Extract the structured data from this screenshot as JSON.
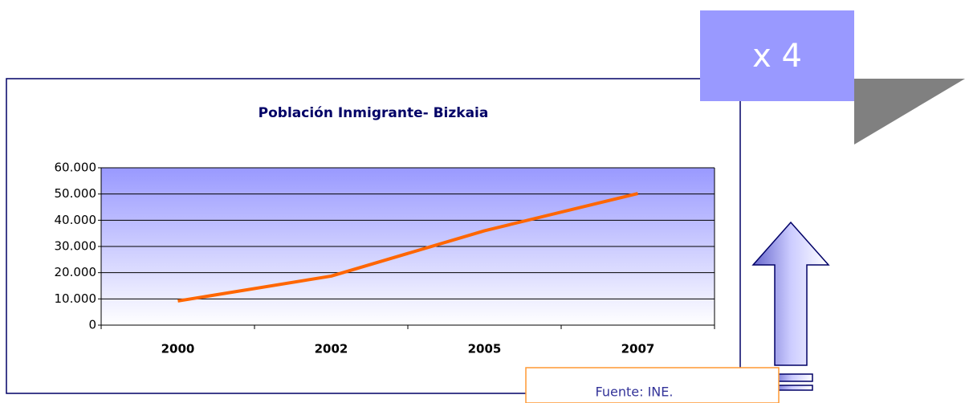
{
  "chart_data": {
    "type": "line",
    "title": "Población Inmigrante- Bizkaia",
    "categories": [
      "2000",
      "2002",
      "2005",
      "2007"
    ],
    "values": [
      9200,
      18700,
      36000,
      50200
    ],
    "color": "#ff6600",
    "ylim": [
      0,
      60000
    ],
    "yticks": [
      0,
      {
        "value": 10000,
        "label": "10.000"
      },
      {
        "value": 20000,
        "label": "20.000"
      },
      {
        "value": 30000,
        "label": "30.000"
      },
      {
        "value": 40000,
        "label": "40.000"
      },
      {
        "value": 50000,
        "label": "50.000"
      },
      {
        "value": 60000,
        "label": "60.000"
      }
    ],
    "grid": true
  },
  "callout": "x 4",
  "source": "Fuente: INE."
}
